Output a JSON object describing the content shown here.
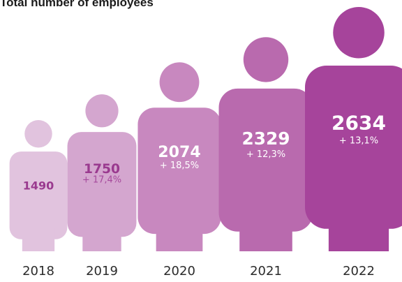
{
  "chart_data": {
    "type": "pictograph",
    "title": "Total number of employees",
    "categories": [
      "2018",
      "2019",
      "2020",
      "2021",
      "2022"
    ],
    "values": [
      1490,
      1750,
      2074,
      2329,
      2634
    ],
    "value_labels": [
      "1490",
      "1750",
      "2074",
      "2329",
      "2634"
    ],
    "growth_labels": [
      "",
      "+ 17,4%",
      "+ 18,5%",
      "+ 12,3%",
      "+ 13,1%"
    ],
    "colors": [
      "#e1c3de",
      "#d4a6cf",
      "#c888bf",
      "#b96aae",
      "#a6449b"
    ],
    "value_text_colors": [
      "#9a3a8f",
      "#9a3a8f",
      "#ffffff",
      "#ffffff",
      "#ffffff"
    ]
  }
}
